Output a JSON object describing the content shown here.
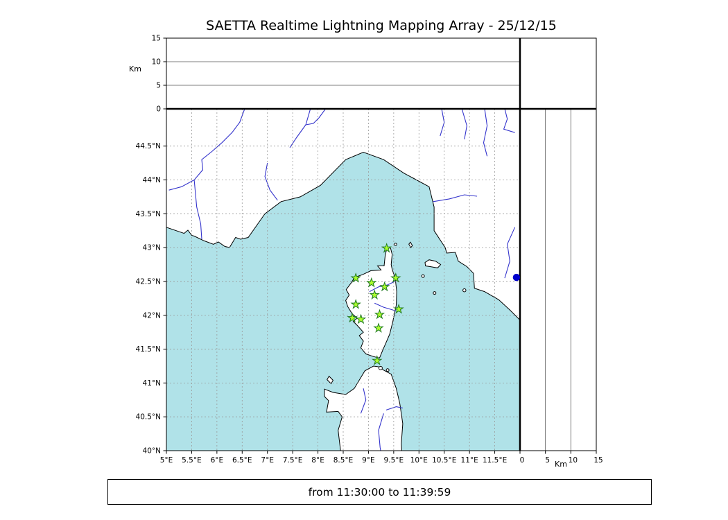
{
  "title": "SAETTA Realtime Lightning Mapping Array - 25/12/15",
  "time_range": "from 11:30:00 to 11:39:59",
  "chart_data": {
    "type": "map",
    "title": "SAETTA Realtime Lightning Mapping Array - 25/12/15",
    "subtitle": "from 11:30:00 to 11:39:59",
    "description": "Lightning mapping array map of Corsica and surrounding Mediterranean with altitude side panels (no lightning sources plotted in this time window)",
    "map_extent": {
      "lon_min": 5,
      "lon_max": 12,
      "lat_min": 40,
      "lat_max": 45.05
    },
    "grid": {
      "step": 0.5,
      "style": "dashed",
      "visible": true
    },
    "x_axis": {
      "ticks": [
        {
          "v": 5,
          "label": "5°E"
        },
        {
          "v": 5.5,
          "label": "5.5°E"
        },
        {
          "v": 6,
          "label": "6°E"
        },
        {
          "v": 6.5,
          "label": "6.5°E"
        },
        {
          "v": 7,
          "label": "7°E"
        },
        {
          "v": 7.5,
          "label": "7.5°E"
        },
        {
          "v": 8,
          "label": "8°E"
        },
        {
          "v": 8.5,
          "label": "8.5°E"
        },
        {
          "v": 9,
          "label": "9°E"
        },
        {
          "v": 9.5,
          "label": "9.5°E"
        },
        {
          "v": 10,
          "label": "10°E"
        },
        {
          "v": 10.5,
          "label": "10.5°E"
        },
        {
          "v": 11,
          "label": "11°E"
        },
        {
          "v": 11.5,
          "label": "11.5°E"
        }
      ]
    },
    "y_axis": {
      "ticks": [
        {
          "v": 40,
          "label": "40°N"
        },
        {
          "v": 40.5,
          "label": "40.5°N"
        },
        {
          "v": 41,
          "label": "41°N"
        },
        {
          "v": 41.5,
          "label": "41.5°N"
        },
        {
          "v": 42,
          "label": "42°N"
        },
        {
          "v": 42.5,
          "label": "42.5°N"
        },
        {
          "v": 43,
          "label": "43°N"
        },
        {
          "v": 43.5,
          "label": "43.5°N"
        },
        {
          "v": 44,
          "label": "44°N"
        },
        {
          "v": 44.5,
          "label": "44.5°N"
        }
      ]
    },
    "altitude_axis": {
      "label": "Km",
      "max": 15,
      "ticks": [
        {
          "v": 0,
          "label": "0"
        },
        {
          "v": 5,
          "label": "5"
        },
        {
          "v": 10,
          "label": "10"
        },
        {
          "v": 15,
          "label": "15"
        }
      ]
    },
    "stations": [
      {
        "lon": 9.36,
        "lat": 42.99
      },
      {
        "lon": 8.75,
        "lat": 42.55
      },
      {
        "lon": 9.06,
        "lat": 42.48
      },
      {
        "lon": 9.54,
        "lat": 42.55
      },
      {
        "lon": 9.32,
        "lat": 42.42
      },
      {
        "lon": 9.12,
        "lat": 42.3
      },
      {
        "lon": 8.75,
        "lat": 42.16
      },
      {
        "lon": 9.6,
        "lat": 42.09
      },
      {
        "lon": 8.68,
        "lat": 41.96
      },
      {
        "lon": 8.85,
        "lat": 41.94
      },
      {
        "lon": 9.22,
        "lat": 42.01
      },
      {
        "lon": 9.2,
        "lat": 41.81
      },
      {
        "lon": 9.17,
        "lat": 41.33
      }
    ],
    "event_marker": {
      "lon": 11.93,
      "lat": 42.56
    },
    "colors": {
      "sea": "#b0e2e8",
      "land": "#ffffff",
      "coast": "#000000",
      "river": "#3333cc",
      "grid": "#999999",
      "station_fill": "#adff2f",
      "station_edge": "#1f7a1f",
      "event_marker": "#0000cc"
    }
  }
}
